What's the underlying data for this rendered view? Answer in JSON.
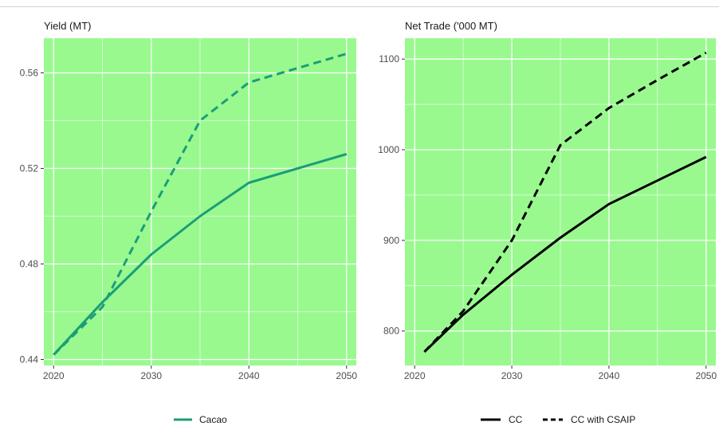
{
  "chart_data": [
    {
      "type": "line",
      "title": "Yield (MT)",
      "x": [
        2020,
        2025,
        2030,
        2035,
        2040,
        2045,
        2050
      ],
      "series": [
        {
          "name": "Cacao",
          "style": "solid",
          "values": [
            0.442,
            0.464,
            0.484,
            0.5,
            0.514,
            0.52,
            0.526
          ]
        },
        {
          "name": "",
          "style": "dashed",
          "values": [
            0.442,
            0.462,
            0.502,
            0.54,
            0.556,
            0.562,
            0.568
          ]
        }
      ],
      "xlim": [
        2019,
        2051
      ],
      "ylim": [
        0.4375,
        0.5745
      ],
      "x_ticks": [
        2020,
        2030,
        2040,
        2050
      ],
      "y_ticks": [
        0.44,
        0.48,
        0.52,
        0.56
      ],
      "y_tick_labels": [
        "0.44",
        "0.48",
        "0.52",
        "0.56"
      ],
      "grid": true,
      "background_color": "#99f98f",
      "line_color": "#1b9e77",
      "legend": {
        "position": "bottom",
        "entries": [
          "Cacao"
        ]
      }
    },
    {
      "type": "line",
      "title": "Net Trade ('000 MT)",
      "x": [
        2021,
        2025,
        2030,
        2035,
        2040,
        2045,
        2050
      ],
      "series": [
        {
          "name": "CC",
          "style": "solid",
          "values": [
            777,
            818,
            862,
            903,
            940,
            966,
            992
          ]
        },
        {
          "name": "CC with CSAIP",
          "style": "dashed",
          "values": [
            777,
            822,
            900,
            1005,
            1046,
            1077,
            1107
          ]
        }
      ],
      "xlim": [
        2019,
        2051
      ],
      "ylim": [
        762,
        1123
      ],
      "x_ticks": [
        2020,
        2030,
        2040,
        2050
      ],
      "y_ticks": [
        800,
        900,
        1000,
        1100
      ],
      "y_tick_labels": [
        "800",
        "900",
        "1000",
        "1100"
      ],
      "grid": true,
      "background_color": "#99f98f",
      "line_color": "#000000",
      "legend": {
        "position": "bottom",
        "entries": [
          "CC",
          "CC with CSAIP"
        ]
      }
    }
  ]
}
